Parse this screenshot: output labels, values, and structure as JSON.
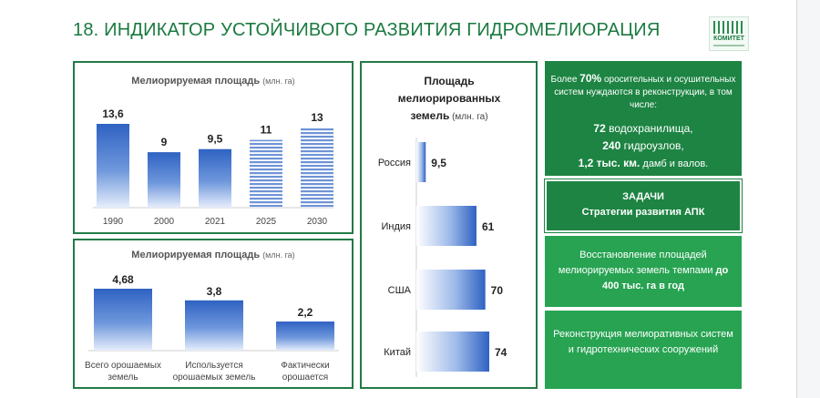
{
  "title": "18.  ИНДИКАТОР УСТОЙЧИВОГО РАЗВИТИЯ ГИДРОМЕЛИОРАЦИЯ",
  "logo_text": "КОМИТЕТ",
  "colors": {
    "brand_green": "#1d8443",
    "light_green": "#27a352",
    "bar_blue": "#3a6fc8"
  },
  "chart_data": [
    {
      "type": "bar",
      "title": "Мелиорируемая площадь",
      "unit": "(млн. га)",
      "categories": [
        "1990",
        "2000",
        "2021",
        "2025",
        "2030"
      ],
      "values": [
        13.6,
        9,
        9.5,
        11,
        13
      ],
      "labels": [
        "13,6",
        "9",
        "9,5",
        "11",
        "13"
      ],
      "forecast": [
        false,
        false,
        false,
        true,
        true
      ]
    },
    {
      "type": "bar",
      "title": "Мелиорируемая площадь",
      "unit": "(млн. га)",
      "categories": [
        [
          "Всего орошаемых",
          "земель"
        ],
        [
          "Используется",
          "орошаемых земель"
        ],
        [
          "Фактически",
          "орошается"
        ]
      ],
      "values": [
        4.68,
        3.8,
        2.2
      ],
      "labels": [
        "4,68",
        "3,8",
        "2,2"
      ]
    },
    {
      "type": "bar",
      "orientation": "horizontal",
      "title_lines": [
        "Площадь",
        "мелиорированных",
        "земель"
      ],
      "unit": "(млн. га)",
      "categories": [
        "Россия",
        "Индия",
        "США",
        "Китай"
      ],
      "values": [
        9.5,
        61,
        70,
        74
      ],
      "labels": [
        "9,5",
        "61",
        "70",
        "74"
      ]
    }
  ],
  "boxes": {
    "g1": {
      "intro_a": "Более ",
      "intro_b": "70%",
      "intro_c": " оросительных и осушительных систем нуждаются в реконструкции, в том числе:",
      "line1_a": "72",
      "line1_b": " водохранилища,",
      "line2_a": "240",
      "line2_b": " гидроузлов,",
      "line3_a": "1,2 тыс. км.",
      "line3_b": " дамб и валов."
    },
    "g2": {
      "line1": "ЗАДАЧИ",
      "line2": "Стратегии развития АПК"
    },
    "g3": {
      "text_a": "Восстановление площадей мелиорируемых земель темпами ",
      "text_b": "до 400 тыс. га в год"
    },
    "g4": {
      "text": "Реконструкция мелиоративных систем и гидротехнических сооружений"
    }
  }
}
